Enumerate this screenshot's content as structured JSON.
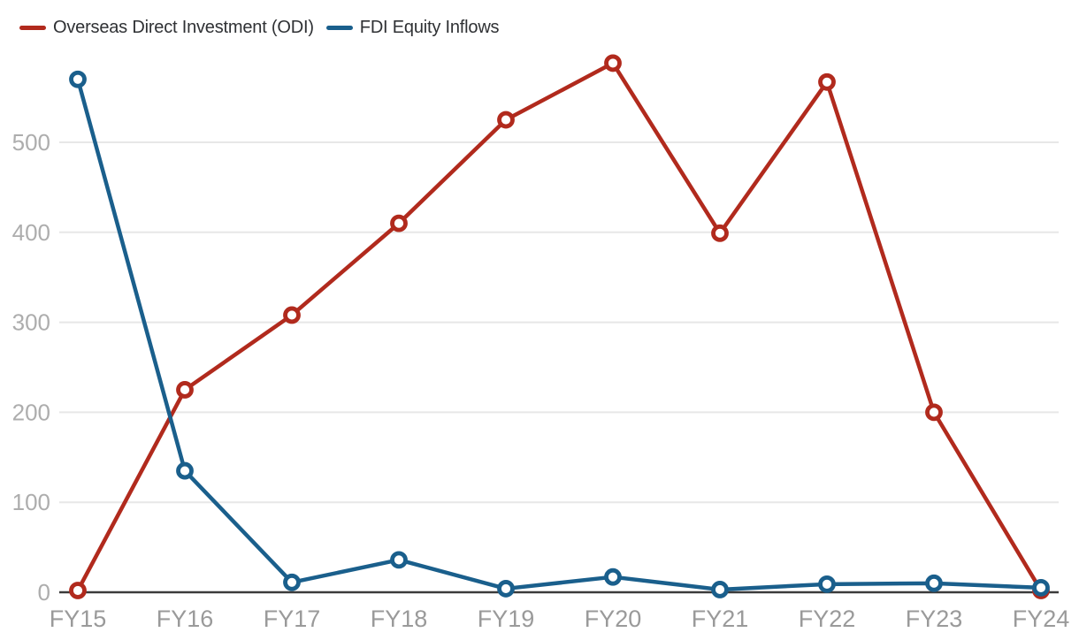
{
  "chart_data": {
    "type": "line",
    "categories": [
      "FY15",
      "FY16",
      "FY17",
      "FY18",
      "FY19",
      "FY20",
      "FY21",
      "FY22",
      "FY23",
      "FY24"
    ],
    "series": [
      {
        "name": "Overseas Direct Investment (ODI)",
        "color": "#b12a1d",
        "values": [
          2,
          225,
          308,
          410,
          525,
          588,
          399,
          567,
          200,
          2
        ]
      },
      {
        "name": "FDI Equity Inflows",
        "color": "#1a5f8c",
        "values": [
          570,
          135,
          11,
          36,
          4,
          17,
          3,
          9,
          10,
          5
        ]
      }
    ],
    "yticks": [
      0,
      100,
      200,
      300,
      400,
      500
    ],
    "ylim": [
      0,
      600
    ],
    "xlabel": "",
    "ylabel": "",
    "title": "",
    "grid": true,
    "legend_position": "top-left",
    "marker": "open-circle"
  },
  "colors": {
    "grid_line": "#e7e7e7",
    "axis_line": "#3b3b3b",
    "y_tick_label": "#adadad",
    "x_tick_label": "#9a9a9a",
    "legend_text": "#2f3134",
    "marker_fill": "#ffffff",
    "background": "#ffffff"
  }
}
